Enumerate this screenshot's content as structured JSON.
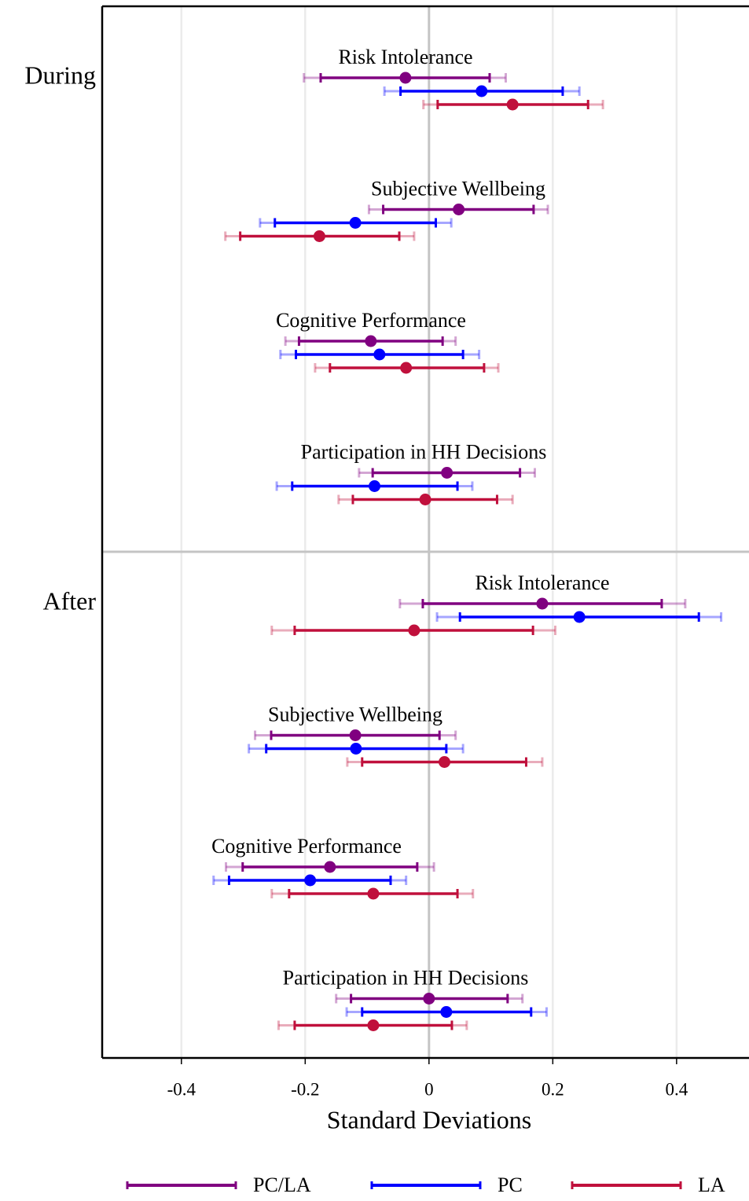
{
  "chart_data": {
    "type": "coefplot",
    "xlabel": "Standard Deviations",
    "xlim": [
      -0.528,
      0.517
    ],
    "xticks": [
      -0.4,
      -0.2,
      0,
      0.2,
      0.4
    ],
    "grid": true,
    "series": [
      {
        "name": "PC/LA",
        "color": "#800080"
      },
      {
        "name": "PC",
        "color": "#0000ff"
      },
      {
        "name": "LA",
        "color": "#c0103c"
      }
    ],
    "panels": [
      {
        "label": "During",
        "categories": [
          "Risk Intolerance",
          "Subjective Wellbeing",
          "Cognitive Performance",
          "Participation in HH Decisions"
        ],
        "estimates": [
          {
            "values": [
              -0.038,
              0.048,
              -0.094,
              0.029
            ],
            "inner_low": [
              -0.175,
              -0.074,
              -0.21,
              -0.091
            ],
            "inner_high": [
              0.098,
              0.169,
              0.022,
              0.147
            ],
            "outer_low": [
              -0.202,
              -0.097,
              -0.232,
              -0.113
            ],
            "outer_high": [
              0.124,
              0.192,
              0.043,
              0.171
            ]
          },
          {
            "values": [
              0.085,
              -0.119,
              -0.08,
              -0.088
            ],
            "inner_low": [
              -0.046,
              -0.249,
              -0.215,
              -0.221
            ],
            "inner_high": [
              0.216,
              0.011,
              0.055,
              0.046
            ],
            "outer_low": [
              -0.072,
              -0.273,
              -0.24,
              -0.246
            ],
            "outer_high": [
              0.243,
              0.036,
              0.081,
              0.07
            ]
          },
          {
            "values": [
              0.135,
              -0.177,
              -0.037,
              -0.006
            ],
            "inner_low": [
              0.014,
              -0.305,
              -0.16,
              -0.123
            ],
            "inner_high": [
              0.257,
              -0.048,
              0.089,
              0.11
            ],
            "outer_low": [
              -0.009,
              -0.329,
              -0.184,
              -0.146
            ],
            "outer_high": [
              0.281,
              -0.024,
              0.112,
              0.135
            ]
          }
        ]
      },
      {
        "label": "After",
        "categories": [
          "Risk Intolerance",
          "Subjective Wellbeing",
          "Cognitive Performance",
          "Participation in HH Decisions"
        ],
        "estimates": [
          {
            "values": [
              0.183,
              -0.119,
              -0.16,
              0.0
            ],
            "inner_low": [
              -0.01,
              -0.255,
              -0.301,
              -0.126
            ],
            "inner_high": [
              0.376,
              0.017,
              -0.019,
              0.127
            ],
            "outer_low": [
              -0.047,
              -0.281,
              -0.328,
              -0.15
            ],
            "outer_high": [
              0.414,
              0.043,
              0.008,
              0.151
            ]
          },
          {
            "values": [
              0.243,
              -0.118,
              -0.192,
              0.028
            ],
            "inner_low": [
              0.05,
              -0.263,
              -0.323,
              -0.108
            ],
            "inner_high": [
              0.436,
              0.028,
              -0.062,
              0.165
            ],
            "outer_low": [
              0.013,
              -0.291,
              -0.348,
              -0.133
            ],
            "outer_high": [
              0.472,
              0.055,
              -0.037,
              0.19
            ]
          },
          {
            "values": [
              -0.024,
              0.025,
              -0.09,
              -0.09
            ],
            "inner_low": [
              -0.217,
              -0.108,
              -0.226,
              -0.217
            ],
            "inner_high": [
              0.168,
              0.157,
              0.046,
              0.037
            ],
            "outer_low": [
              -0.254,
              -0.132,
              -0.254,
              -0.243
            ],
            "outer_high": [
              0.204,
              0.183,
              0.071,
              0.061
            ]
          }
        ]
      }
    ]
  }
}
